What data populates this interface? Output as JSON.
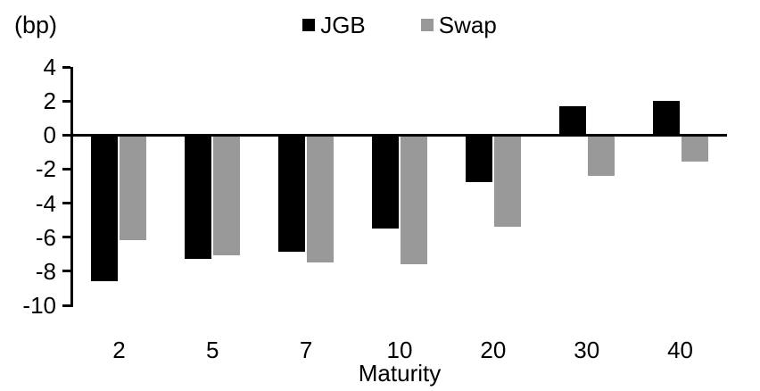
{
  "chart": {
    "unit_label": "(bp)",
    "xlabel": "Maturity"
  },
  "chart_data": {
    "type": "bar",
    "title": "",
    "categories": [
      "2",
      "5",
      "7",
      "10",
      "20",
      "30",
      "40"
    ],
    "series": [
      {
        "name": "JGB",
        "color": "#000000",
        "values": [
          -8.5,
          -7.2,
          -6.8,
          -5.4,
          -2.7,
          1.7,
          2.0
        ]
      },
      {
        "name": "Swap",
        "color": "#999999",
        "values": [
          -6.1,
          -7.0,
          -7.4,
          -7.5,
          -5.3,
          -2.3,
          -1.5
        ]
      }
    ],
    "xlabel": "Maturity",
    "ylabel": "(bp)",
    "ylim": [
      -10,
      4
    ],
    "yticks": [
      4,
      2,
      0,
      -2,
      -4,
      -6,
      -8,
      -10
    ],
    "legend_position": "top-center",
    "grid": false
  }
}
